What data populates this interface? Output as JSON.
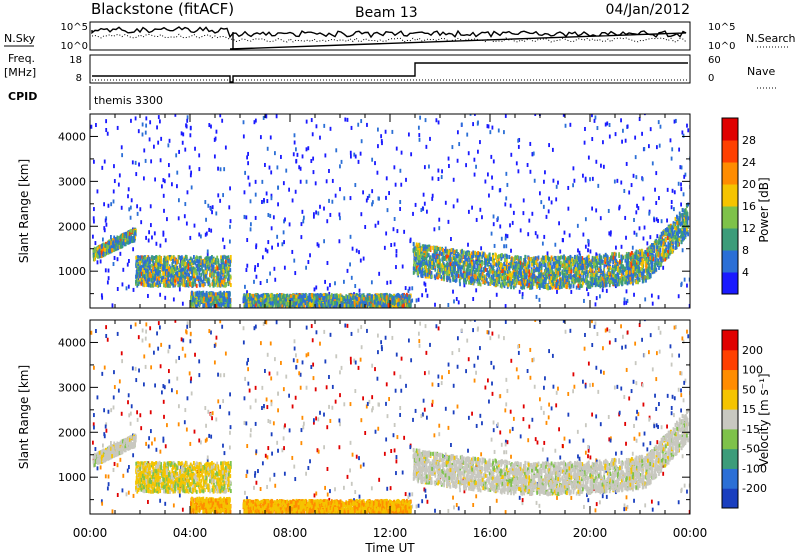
{
  "header": {
    "station": "Blackstone (fitACF)",
    "beam": "Beam 13",
    "date": "04/Jan/2012"
  },
  "top_panels": {
    "nsky_label": "N.Sky",
    "nsearch_label": "N.Search",
    "noise_ticks": [
      "10^5",
      "10^0"
    ],
    "freq_label": "Freq.",
    "freq_unit": "[MHz]",
    "freq_ticks": [
      "18",
      "8"
    ],
    "nave_label": "Nave",
    "nave_ticks": [
      "60",
      "0"
    ],
    "cpid_label": "CPID",
    "cpid_value": "themis 3300"
  },
  "colorbars": {
    "power": {
      "label": "Power [dB]",
      "ticks": [
        "28",
        "24",
        "20",
        "16",
        "12",
        "8",
        "4"
      ],
      "colors": [
        "#1a1aff",
        "#2b6fd6",
        "#3c9c7a",
        "#7ec24a",
        "#f5c400",
        "#ff8c00",
        "#ff4000",
        "#e00000"
      ]
    },
    "velocity": {
      "label": "Velocity [m s⁻¹]",
      "ticks": [
        "200",
        "100",
        "50",
        "15",
        "-15",
        "-50",
        "-100",
        "-200"
      ],
      "colors": [
        "#1a3fbf",
        "#2b6fd6",
        "#3c9c7a",
        "#7ec24a",
        "#c8c8c0",
        "#f5c400",
        "#ff8c00",
        "#ff4000",
        "#e00000"
      ]
    }
  },
  "chart_data": [
    {
      "type": "heatmap",
      "name": "power",
      "ylabel": "Slant Range [km]",
      "yticks": [
        "4000",
        "3000",
        "2000",
        "1000"
      ],
      "ylim": [
        180,
        4500
      ],
      "xlim": [
        0,
        24
      ],
      "xticks": [
        "00:00",
        "04:00",
        "08:00",
        "12:00",
        "16:00",
        "20:00",
        "00:00"
      ],
      "data_gap_hours": [
        5.6,
        6.1
      ],
      "echo_bands": [
        {
          "t0": 0.1,
          "t1": 1.8,
          "r0": 1250,
          "r1": 1900
        },
        {
          "t0": 1.8,
          "t1": 5.6,
          "r0": 650,
          "r1": 1300
        },
        {
          "t0": 4.0,
          "t1": 5.6,
          "r0": 200,
          "r1": 500
        },
        {
          "t0": 6.1,
          "t1": 12.8,
          "r0": 180,
          "r1": 450
        },
        {
          "t0": 12.9,
          "t1": 23.9,
          "r0": 700,
          "r1": 2300
        }
      ]
    },
    {
      "type": "heatmap",
      "name": "velocity",
      "ylabel": "Slant Range [km]",
      "yticks": [
        "4000",
        "3000",
        "2000",
        "1000"
      ],
      "ylim": [
        180,
        4500
      ],
      "xlim": [
        0,
        24
      ],
      "xticks": [
        "00:00",
        "04:00",
        "08:00",
        "12:00",
        "16:00",
        "20:00",
        "00:00"
      ],
      "xlabel": "Time UT",
      "data_gap_hours": [
        5.6,
        6.1
      ]
    }
  ]
}
